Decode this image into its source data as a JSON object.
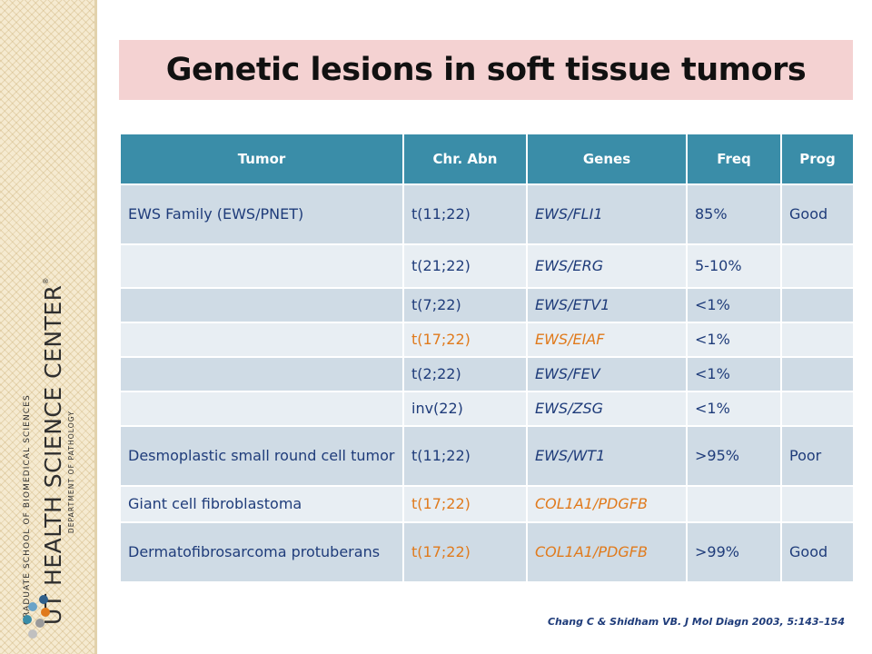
{
  "slide": {
    "title": "Genetic lesions in soft tissue tumors",
    "citation": "Chang C & Shidham VB. J Mol Diagn 2003, 5:143–154"
  },
  "logo": {
    "line1": "GRADUATE SCHOOL OF BIOMEDICAL SCIENCES",
    "line2": "UT HEALTH SCIENCE CENTER",
    "line2_mark": "®",
    "line3": "DEPARTMENT OF PATHOLOGY",
    "dot_colors": [
      "#2f5f8a",
      "#6aa3c8",
      "#e07a1c",
      "#9a9a9a",
      "#3a8da8",
      "#c0c0c0"
    ]
  },
  "table": {
    "headers": [
      "Tumor",
      "Chr. Abn",
      "Genes",
      "Freq",
      "Prog"
    ],
    "rows": [
      {
        "tumor": "EWS Family (EWS/PNET)",
        "chr": "t(11;22)",
        "genes": "EWS/FLI1",
        "freq": "85%",
        "prog": "Good"
      },
      {
        "tumor": "",
        "chr": "t(21;22)",
        "genes": "EWS/ERG",
        "freq": "5-10%",
        "prog": ""
      },
      {
        "tumor": "",
        "chr": "t(7;22)",
        "genes": "EWS/ETV1",
        "freq": "<1%",
        "prog": ""
      },
      {
        "tumor": "",
        "chr": "t(17;22)",
        "genes": "EWS/EIAF",
        "freq": "<1%",
        "prog": ""
      },
      {
        "tumor": "",
        "chr": "t(2;22)",
        "genes": "EWS/FEV",
        "freq": "<1%",
        "prog": ""
      },
      {
        "tumor": "",
        "chr": "inv(22)",
        "genes": "EWS/ZSG",
        "freq": "<1%",
        "prog": ""
      },
      {
        "tumor": "Desmoplastic small round cell tumor",
        "chr": "t(11;22)",
        "genes": "EWS/WT1",
        "freq": ">95%",
        "prog": "Poor"
      },
      {
        "tumor": "Giant cell fibroblastoma",
        "chr": "t(17;22)",
        "genes": "COL1A1/PDGFB",
        "freq": "",
        "prog": ""
      },
      {
        "tumor": "Dermatofibrosarcoma protuberans",
        "chr": "t(17;22)",
        "genes": "COL1A1/PDGFB",
        "freq": ">99%",
        "prog": "Good"
      }
    ],
    "colors": {
      "header_bg": "#3a8da8",
      "row_dark": "#cfdbe5",
      "row_light": "#e8eef3",
      "text": "#1f3c7a",
      "highlight": "#e07a1c"
    }
  }
}
